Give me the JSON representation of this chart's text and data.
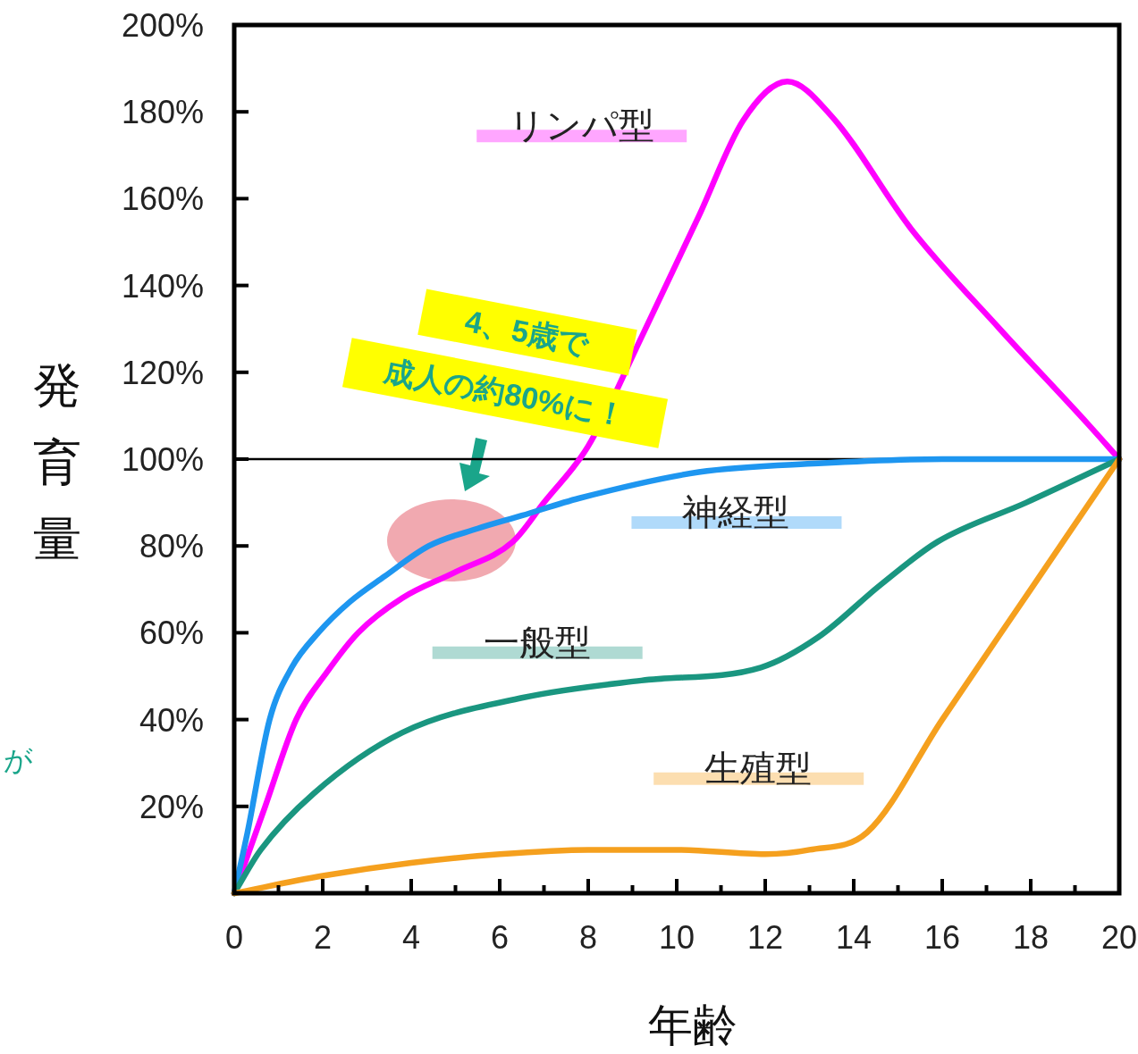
{
  "chart_data": {
    "type": "line",
    "xlabel": "年齢",
    "ylabel": "発育量",
    "xlim": [
      0,
      20
    ],
    "ylim": [
      0,
      200
    ],
    "xticks": [
      0,
      {
        "value": 1,
        "label": null
      },
      2,
      {
        "value": 3,
        "label": null
      },
      4,
      {
        "value": 5,
        "label": null
      },
      6,
      {
        "value": 7,
        "label": null
      },
      8,
      {
        "value": 9,
        "label": null
      },
      10,
      {
        "value": 11,
        "label": null
      },
      12,
      {
        "value": 13,
        "label": null
      },
      14,
      {
        "value": 15,
        "label": null
      },
      16,
      {
        "value": 17,
        "label": null
      },
      18,
      {
        "value": 19,
        "label": null
      },
      20
    ],
    "yticks": [
      {
        "value": 20,
        "label": "20%"
      },
      {
        "value": 40,
        "label": "40%"
      },
      {
        "value": 60,
        "label": "60%"
      },
      {
        "value": 80,
        "label": "80%"
      },
      {
        "value": 100,
        "label": "100%"
      },
      {
        "value": 120,
        "label": "120%"
      },
      {
        "value": 140,
        "label": "140%"
      },
      {
        "value": 160,
        "label": "160%"
      },
      {
        "value": 180,
        "label": "180%"
      },
      {
        "value": 200,
        "label": "200%"
      }
    ],
    "grid": false,
    "marker": "none",
    "line_style": "solid",
    "ref_lines": [
      {
        "axis": "y",
        "value": 100,
        "color": "#000000"
      }
    ],
    "series": [
      {
        "name": "リンパ型",
        "color": "#ff00ff",
        "x": [
          0,
          0.7,
          1.4,
          2.1,
          2.8,
          3.8,
          5,
          6.3,
          7,
          8,
          9.2,
          10.5,
          11.5,
          12.5,
          13.5,
          15.3,
          17.3,
          19.3,
          20
        ],
        "values": [
          0,
          20,
          40,
          51,
          60,
          68,
          74,
          81,
          90,
          103,
          128,
          156,
          178,
          187,
          179,
          153,
          130,
          108,
          100
        ]
      },
      {
        "name": "神経型",
        "color": "#1e96f0",
        "x": [
          0,
          0.3,
          0.8,
          1.3,
          1.9,
          2.6,
          3.4,
          4.4,
          5.5,
          6.5,
          7.8,
          10.5,
          13.2,
          16,
          20
        ],
        "values": [
          0,
          14,
          40,
          52,
          60,
          67,
          73,
          80,
          84,
          87,
          91,
          97,
          99,
          100,
          100
        ]
      },
      {
        "name": "一般型",
        "color": "#1a9680",
        "x": [
          0,
          0.6,
          1.8,
          3.8,
          6.5,
          9.2,
          11.9,
          13.2,
          14.6,
          15.9,
          17.9,
          20
        ],
        "values": [
          0,
          10,
          23,
          37,
          45,
          49,
          52,
          59,
          71,
          81,
          90,
          100
        ]
      },
      {
        "name": "生殖型",
        "color": "#f5a01e",
        "x": [
          0,
          2,
          4,
          6,
          8,
          10,
          12,
          13,
          14.3,
          16,
          18,
          20
        ],
        "values": [
          0,
          4,
          7,
          9,
          10,
          10,
          9,
          10,
          14,
          40,
          70,
          100
        ]
      }
    ],
    "annotations": [
      "4、5歳で",
      "成人の約80%に！",
      "が"
    ]
  }
}
